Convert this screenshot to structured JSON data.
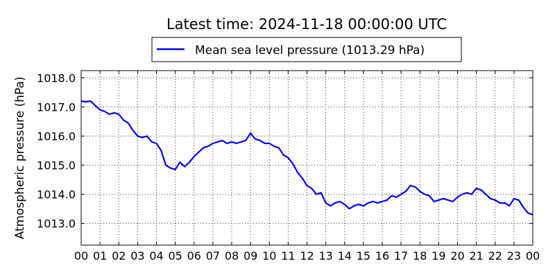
{
  "chart_data": {
    "type": "line",
    "title": "Latest time: 2024-11-18 00:00:00 UTC",
    "xlabel": "",
    "ylabel": "Atmospheric pressure (hPa)",
    "xlim": [
      0,
      24
    ],
    "ylim": [
      1012.25,
      1018.25
    ],
    "x_tick_values": [
      0,
      1,
      2,
      3,
      4,
      5,
      6,
      7,
      8,
      9,
      10,
      11,
      12,
      13,
      14,
      15,
      16,
      17,
      18,
      19,
      20,
      21,
      22,
      23,
      24
    ],
    "x_tick_labels": [
      "00",
      "01",
      "02",
      "03",
      "04",
      "05",
      "06",
      "07",
      "08",
      "09",
      "10",
      "11",
      "12",
      "13",
      "14",
      "15",
      "16",
      "17",
      "18",
      "19",
      "20",
      "21",
      "22",
      "23",
      "00"
    ],
    "y_ticks": [
      1013.0,
      1014.0,
      1015.0,
      1016.0,
      1017.0,
      1018.0
    ],
    "y_tick_labels": [
      "1013.0",
      "1014.0",
      "1015.0",
      "1016.0",
      "1017.0",
      "1018.0"
    ],
    "grid": true,
    "legend_position": "top-center",
    "series": [
      {
        "name": "Mean sea level pressure (1013.29 hPa)",
        "color": "#0000ff",
        "x": [
          0,
          0.25,
          0.5,
          0.75,
          1,
          1.25,
          1.5,
          1.75,
          2,
          2.25,
          2.5,
          2.75,
          3,
          3.25,
          3.5,
          3.75,
          4,
          4.25,
          4.5,
          4.75,
          5,
          5.25,
          5.5,
          5.75,
          6,
          6.25,
          6.5,
          6.75,
          7,
          7.25,
          7.5,
          7.75,
          8,
          8.25,
          8.5,
          8.75,
          9,
          9.25,
          9.5,
          9.75,
          10,
          10.25,
          10.5,
          10.75,
          11,
          11.25,
          11.5,
          11.75,
          12,
          12.25,
          12.5,
          12.75,
          13,
          13.25,
          13.5,
          13.75,
          14,
          14.25,
          14.5,
          14.75,
          15,
          15.25,
          15.5,
          15.75,
          16,
          16.25,
          16.5,
          16.75,
          17,
          17.25,
          17.5,
          17.75,
          18,
          18.25,
          18.5,
          18.75,
          19,
          19.25,
          19.5,
          19.75,
          20,
          20.25,
          20.5,
          20.75,
          21,
          21.25,
          21.5,
          21.75,
          22,
          22.25,
          22.5,
          22.75,
          23,
          23.25,
          23.5,
          23.75,
          24
        ],
        "values": [
          1017.2,
          1017.18,
          1017.2,
          1017.05,
          1016.9,
          1016.85,
          1016.75,
          1016.8,
          1016.75,
          1016.55,
          1016.45,
          1016.2,
          1016.0,
          1015.95,
          1016.0,
          1015.8,
          1015.75,
          1015.5,
          1015.0,
          1014.9,
          1014.85,
          1015.1,
          1014.95,
          1015.1,
          1015.3,
          1015.45,
          1015.6,
          1015.65,
          1015.75,
          1015.8,
          1015.85,
          1015.75,
          1015.8,
          1015.75,
          1015.8,
          1015.85,
          1016.1,
          1015.9,
          1015.85,
          1015.75,
          1015.75,
          1015.65,
          1015.6,
          1015.35,
          1015.25,
          1015.05,
          1014.75,
          1014.55,
          1014.3,
          1014.2,
          1014.0,
          1014.05,
          1013.7,
          1013.6,
          1013.7,
          1013.75,
          1013.65,
          1013.5,
          1013.6,
          1013.65,
          1013.6,
          1013.7,
          1013.75,
          1013.7,
          1013.75,
          1013.8,
          1013.95,
          1013.9,
          1014.0,
          1014.1,
          1014.3,
          1014.25,
          1014.1,
          1014.0,
          1013.95,
          1013.75,
          1013.8,
          1013.85,
          1013.8,
          1013.75,
          1013.9,
          1014.0,
          1014.05,
          1014.0,
          1014.2,
          1014.15,
          1014.0,
          1013.85,
          1013.8,
          1013.7,
          1013.7,
          1013.6,
          1013.85,
          1013.8,
          1013.55,
          1013.35,
          1013.3
        ]
      }
    ]
  }
}
